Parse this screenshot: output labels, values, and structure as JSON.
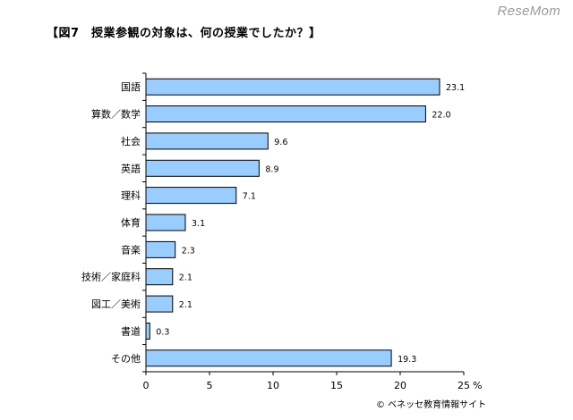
{
  "title": "【図7　授業参観の対象は、何の授業でしたか？】",
  "watermark": "ReseMom",
  "copyright": "© ベネッセ教育情報サイト",
  "chart_data": {
    "type": "bar",
    "orientation": "horizontal",
    "categories": [
      "国語",
      "算数／数学",
      "社会",
      "英語",
      "理科",
      "体育",
      "音楽",
      "技術／家庭科",
      "図工／美術",
      "書道",
      "その他"
    ],
    "values": [
      23.1,
      22.0,
      9.6,
      8.9,
      7.1,
      3.1,
      2.3,
      2.1,
      2.1,
      0.3,
      19.3
    ],
    "value_labels": [
      "23.1",
      "22.0",
      "9.6",
      "8.9",
      "7.1",
      "3.1",
      "2.3",
      "2.1",
      "2.1",
      "0.3",
      "19.3"
    ],
    "xlim": [
      0,
      25
    ],
    "xticks": [
      "0",
      "5",
      "10",
      "15",
      "20",
      "25"
    ],
    "xunit": "%",
    "bar_color": "#99ccff",
    "bar_edge_color": "#000000",
    "grid": false
  }
}
